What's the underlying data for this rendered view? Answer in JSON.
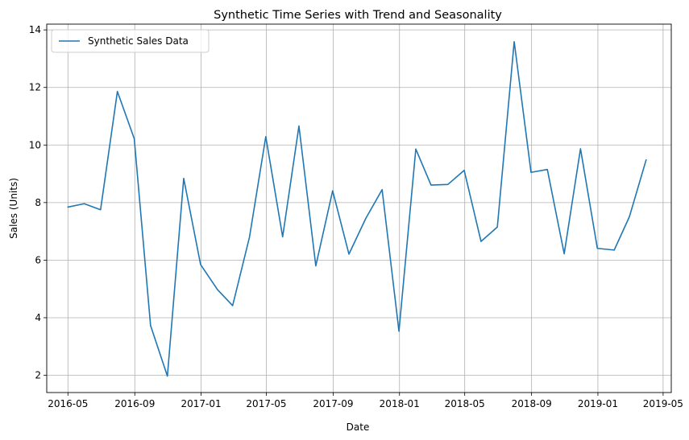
{
  "chart_data": {
    "type": "line",
    "title": "Synthetic Time Series with Trend and Seasonality",
    "xlabel": "Date",
    "ylabel": "Sales (Units)",
    "grid": true,
    "legend_position": "top-left",
    "line_color": "#1f77b4",
    "x_tick_labels": [
      "2016-05",
      "2016-09",
      "2017-01",
      "2017-05",
      "2017-09",
      "2018-01",
      "2018-05",
      "2018-09",
      "2019-01",
      "2019-05"
    ],
    "y_tick_labels": [
      "2",
      "4",
      "6",
      "8",
      "10",
      "12",
      "14"
    ],
    "x_range": [
      "2016-03-23",
      "2019-05-16"
    ],
    "ylim": [
      1.4,
      14.2
    ],
    "series": [
      {
        "name": "Synthetic Sales Data",
        "x": [
          "2016-04-30",
          "2016-05-31",
          "2016-06-30",
          "2016-07-31",
          "2016-08-31",
          "2016-09-30",
          "2016-10-31",
          "2016-11-30",
          "2016-12-31",
          "2017-01-31",
          "2017-02-28",
          "2017-03-31",
          "2017-04-30",
          "2017-05-31",
          "2017-06-30",
          "2017-07-31",
          "2017-08-31",
          "2017-09-30",
          "2017-10-31",
          "2017-11-30",
          "2017-12-31",
          "2018-01-31",
          "2018-02-28",
          "2018-03-31",
          "2018-04-30",
          "2018-05-31",
          "2018-06-30",
          "2018-07-31",
          "2018-08-31",
          "2018-09-30",
          "2018-10-31",
          "2018-11-30",
          "2018-12-31",
          "2019-01-31",
          "2019-02-28",
          "2019-03-31"
        ],
        "values": [
          7.84,
          7.96,
          7.75,
          11.86,
          10.22,
          3.73,
          1.97,
          8.84,
          5.85,
          4.98,
          4.42,
          6.8,
          10.29,
          6.81,
          10.66,
          5.8,
          8.41,
          6.21,
          7.45,
          8.45,
          3.53,
          9.86,
          8.61,
          8.63,
          9.12,
          6.65,
          7.15,
          13.59,
          9.05,
          9.15,
          6.22,
          9.87,
          6.41,
          6.35,
          7.51,
          9.5
        ]
      }
    ]
  }
}
